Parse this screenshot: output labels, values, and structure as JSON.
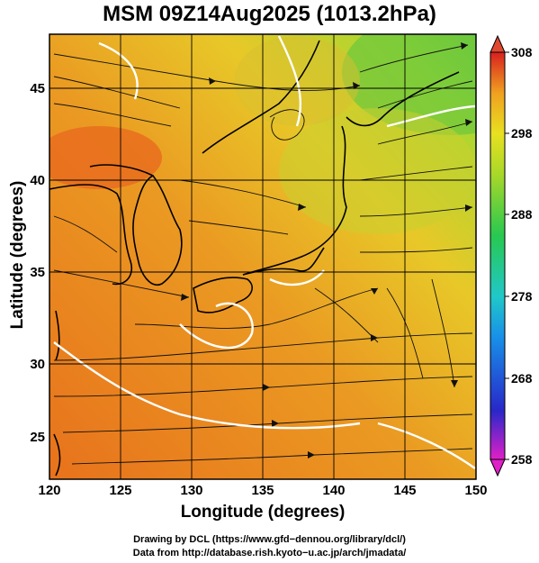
{
  "header": {
    "title": "MSM 09Z14Aug2025 (1013.2hPa)"
  },
  "map": {
    "xlabel": "Longitude (degrees)",
    "ylabel": "Latitude  (degrees)",
    "x_ticks": [
      "120",
      "125",
      "130",
      "135",
      "140",
      "145",
      "150"
    ],
    "y_ticks": [
      "45",
      "40",
      "35",
      "30",
      "25"
    ],
    "xlim": [
      120,
      150
    ],
    "ylim": [
      22.4,
      47.6
    ],
    "grid": true,
    "field": "temperature (K) shaded with streamlines"
  },
  "colorbar": {
    "ticks": [
      "308",
      "298",
      "288",
      "278",
      "268",
      "258"
    ],
    "range": [
      258,
      308
    ],
    "colors": [
      "#d81ad8",
      "#2020c8",
      "#1890e8",
      "#20c8c8",
      "#20c850",
      "#90d820",
      "#e8e020",
      "#f0a020",
      "#e85020",
      "#d82020"
    ]
  },
  "footer": {
    "line1": "Drawing by DCL (https://www.gfd−dennou.org/library/dcl/)",
    "line2": "Data from http://database.rish.kyoto−u.ac.jp/arch/jmadata/"
  }
}
